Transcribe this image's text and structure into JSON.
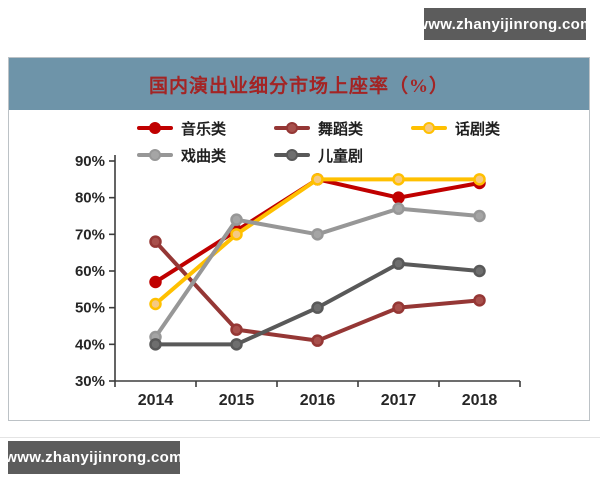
{
  "watermarks": {
    "top": "www.zhanyijinrong.com",
    "bottom": "www.zhanyijinrong.com"
  },
  "colors": {
    "badge_background": "#5c5c5c",
    "badge_text": "#ffffff",
    "title_bar_background": "#6e94a9",
    "title_text": "#a32424",
    "axis": "#3d3d3d",
    "axis_label": "#262626",
    "panel_border": "#bcc2c6"
  },
  "chart_data": {
    "type": "line",
    "title": "国内演出业细分市场上座率（%）",
    "categories": [
      "2014",
      "2015",
      "2016",
      "2017",
      "2018"
    ],
    "series": [
      {
        "name": "音乐类",
        "color": "#c00000",
        "marker_fill": "#c00000",
        "values": [
          57,
          71,
          85,
          80,
          84
        ]
      },
      {
        "name": "舞蹈类",
        "color": "#953735",
        "marker_fill": "#a8504c",
        "values": [
          68,
          44,
          41,
          50,
          52
        ]
      },
      {
        "name": "话剧类",
        "color": "#ffc000",
        "marker_fill": "#f5c983",
        "values": [
          51,
          70,
          85,
          85,
          85
        ]
      },
      {
        "name": "戏曲类",
        "color": "#979797",
        "marker_fill": "#a5a5a5",
        "values": [
          42,
          74,
          70,
          77,
          75
        ]
      },
      {
        "name": "儿童剧",
        "color": "#595959",
        "marker_fill": "#6e6e6e",
        "values": [
          40,
          40,
          50,
          62,
          60
        ]
      }
    ],
    "ylim": [
      30,
      90
    ],
    "ytick_step": 10,
    "ytick_labels": [
      "30%",
      "40%",
      "50%",
      "60%",
      "70%",
      "80%",
      "90%"
    ],
    "xlabel": "",
    "ylabel": "",
    "grid": false,
    "legend_position": "top"
  }
}
